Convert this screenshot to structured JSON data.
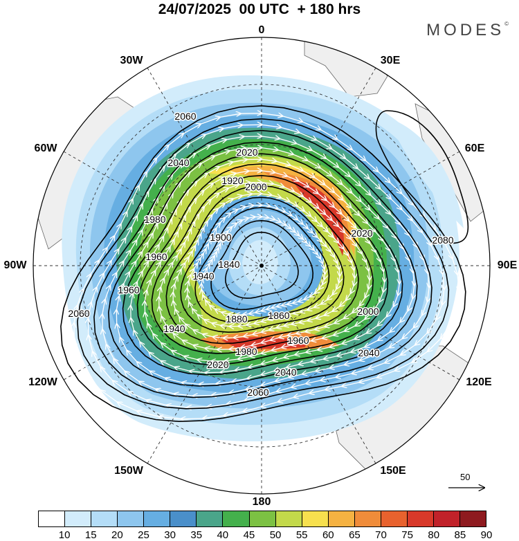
{
  "header": {
    "title": "24/07/2025  00 UTC  + 180 hrs",
    "brand": "MODES",
    "brand_mark": "©"
  },
  "map": {
    "projection": "south-polar-stereographic",
    "longitude_labels": [
      {
        "id": "0",
        "text": "0"
      },
      {
        "id": "30e",
        "text": "30E"
      },
      {
        "id": "60e",
        "text": "60E"
      },
      {
        "id": "90e",
        "text": "90E"
      },
      {
        "id": "120e",
        "text": "120E"
      },
      {
        "id": "150e",
        "text": "150E"
      },
      {
        "id": "180",
        "text": "180"
      },
      {
        "id": "150w",
        "text": "150W"
      },
      {
        "id": "120w",
        "text": "120W"
      },
      {
        "id": "90w",
        "text": "90W"
      },
      {
        "id": "60w",
        "text": "60W"
      },
      {
        "id": "30w",
        "text": "30W"
      }
    ],
    "contour_labels": [
      "2060",
      "2040",
      "2020",
      "2000",
      "1980",
      "1960",
      "1940",
      "1920",
      "1900",
      "1880",
      "1860",
      "1840",
      "2080"
    ],
    "contour_interval": 20,
    "reference_vector": "50",
    "colors": {
      "land": "#efefef",
      "coast": "#555555",
      "contour": "#000000",
      "streamline": "#ffffff"
    }
  },
  "colorbar": {
    "labels": [
      "10",
      "15",
      "20",
      "25",
      "30",
      "35",
      "40",
      "45",
      "50",
      "55",
      "60",
      "65",
      "70",
      "75",
      "80",
      "85",
      "90"
    ],
    "colors": [
      "#ffffff",
      "#d2ecfb",
      "#b4ddf7",
      "#8ec6ee",
      "#66aee2",
      "#4a8fca",
      "#4aa58a",
      "#44b04c",
      "#7cc143",
      "#c3d94a",
      "#f7e04e",
      "#f5b242",
      "#f08c3a",
      "#e8622e",
      "#d8392a",
      "#c1222a",
      "#8e1a1f"
    ]
  }
}
